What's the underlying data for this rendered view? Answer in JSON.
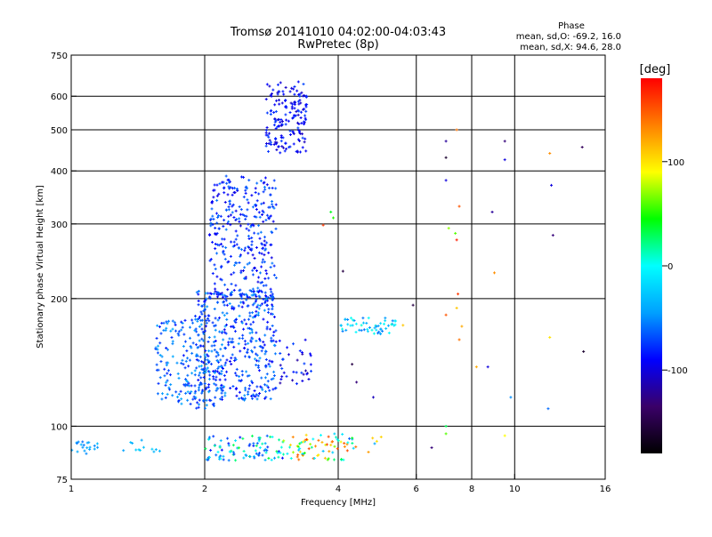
{
  "chart_data": {
    "type": "scatter",
    "title": "Tromsø 20141010 04:02:00-04:03:43",
    "subtitle": "RwPretec (8p)",
    "xlabel": "Frequency [MHz]",
    "ylabel": "Stationary phase Virtual Height [km]",
    "x_scale": "log",
    "y_scale": "log",
    "xlim": [
      1,
      16
    ],
    "ylim": [
      75,
      750
    ],
    "x_ticks": [
      {
        "value": 1,
        "label": "1"
      },
      {
        "value": 2,
        "label": "2"
      },
      {
        "value": 4,
        "label": "4"
      },
      {
        "value": 6,
        "label": "6"
      },
      {
        "value": 8,
        "label": "8"
      },
      {
        "value": 10,
        "label": "10"
      },
      {
        "value": 16,
        "label": "16"
      }
    ],
    "y_ticks": [
      {
        "value": 75,
        "label": "75"
      },
      {
        "value": 100,
        "label": "100"
      },
      {
        "value": 200,
        "label": "200"
      },
      {
        "value": 300,
        "label": "300"
      },
      {
        "value": 400,
        "label": "400"
      },
      {
        "value": 500,
        "label": "500"
      },
      {
        "value": 600,
        "label": "600"
      },
      {
        "value": 750,
        "label": "750"
      }
    ],
    "x_gridlines": [
      2,
      4,
      6,
      8,
      10
    ],
    "y_gridlines": [
      100,
      200,
      300,
      400,
      500,
      600
    ],
    "grid": true,
    "phase_legend": {
      "title": "Phase",
      "line1": "mean, sd,O: -69.2, 16.0",
      "line2": "mean, sd,X:  94.6, 28.0"
    },
    "colorbar": {
      "label": "[deg]",
      "range": [
        -180,
        180
      ],
      "ticks": [
        {
          "value": 100,
          "label": "100"
        },
        {
          "value": 0,
          "label": "0"
        },
        {
          "value": -100,
          "label": "-100"
        }
      ],
      "colors": [
        "#000000",
        "#3a0068",
        "#0000ff",
        "#00a0ff",
        "#00ffff",
        "#00ff00",
        "#ffff00",
        "#ff8000",
        "#ff0000"
      ]
    },
    "clusters": [
      {
        "f": [
          2.75,
          3.4
        ],
        "h": [
          440,
          650
        ],
        "n": 170,
        "phase": [
          -110,
          -70
        ]
      },
      {
        "f": [
          2.05,
          2.9
        ],
        "h": [
          200,
          390
        ],
        "n": 320,
        "phase": [
          -100,
          -55
        ]
      },
      {
        "f": [
          1.9,
          2.9
        ],
        "h": [
          115,
          210
        ],
        "n": 420,
        "phase": [
          -95,
          -45
        ]
      },
      {
        "f": [
          1.55,
          2.2
        ],
        "h": [
          110,
          180
        ],
        "n": 200,
        "phase": [
          -85,
          -40
        ]
      },
      {
        "f": [
          2.9,
          3.5
        ],
        "h": [
          125,
          160
        ],
        "n": 35,
        "phase": [
          -120,
          -70
        ]
      },
      {
        "f": [
          4.0,
          5.4
        ],
        "h": [
          165,
          180
        ],
        "n": 55,
        "phase": [
          -60,
          10
        ]
      },
      {
        "f": [
          1.0,
          1.15
        ],
        "h": [
          86,
          92
        ],
        "n": 20,
        "phase": [
          -60,
          -30
        ]
      },
      {
        "f": [
          1.3,
          1.6
        ],
        "h": [
          87,
          94
        ],
        "n": 12,
        "phase": [
          -55,
          -20
        ]
      },
      {
        "f": [
          2.0,
          3.0
        ],
        "h": [
          83,
          95
        ],
        "n": 90,
        "phase": [
          -90,
          40
        ]
      },
      {
        "f": [
          3.0,
          4.2
        ],
        "h": [
          83,
          97
        ],
        "n": 70,
        "phase": [
          -30,
          160
        ]
      },
      {
        "f": [
          4.2,
          5.0
        ],
        "h": [
          85,
          95
        ],
        "n": 12,
        "phase": [
          -80,
          150
        ]
      }
    ],
    "sparse_points": [
      {
        "f": 3.85,
        "h": 320,
        "phase": 40
      },
      {
        "f": 3.9,
        "h": 310,
        "phase": 50
      },
      {
        "f": 3.7,
        "h": 298,
        "phase": 160
      },
      {
        "f": 4.1,
        "h": 232,
        "phase": -150
      },
      {
        "f": 4.3,
        "h": 140,
        "phase": -150
      },
      {
        "f": 4.4,
        "h": 127,
        "phase": -130
      },
      {
        "f": 4.8,
        "h": 117,
        "phase": -110
      },
      {
        "f": 5.9,
        "h": 193,
        "phase": -150
      },
      {
        "f": 5.6,
        "h": 173,
        "phase": 110
      },
      {
        "f": 6.5,
        "h": 89,
        "phase": -130
      },
      {
        "f": 7.0,
        "h": 470,
        "phase": -120
      },
      {
        "f": 7.0,
        "h": 430,
        "phase": -160
      },
      {
        "f": 7.0,
        "h": 380,
        "phase": -100
      },
      {
        "f": 7.4,
        "h": 500,
        "phase": 140
      },
      {
        "f": 7.5,
        "h": 330,
        "phase": 150
      },
      {
        "f": 7.1,
        "h": 293,
        "phase": 70
      },
      {
        "f": 7.35,
        "h": 285,
        "phase": 60
      },
      {
        "f": 7.4,
        "h": 275,
        "phase": 170
      },
      {
        "f": 7.45,
        "h": 205,
        "phase": 160
      },
      {
        "f": 7.4,
        "h": 190,
        "phase": 110
      },
      {
        "f": 7.0,
        "h": 183,
        "phase": 150
      },
      {
        "f": 7.5,
        "h": 160,
        "phase": 140
      },
      {
        "f": 7.6,
        "h": 172,
        "phase": 120
      },
      {
        "f": 7.0,
        "h": 100,
        "phase": 30
      },
      {
        "f": 7.0,
        "h": 96,
        "phase": 60
      },
      {
        "f": 8.2,
        "h": 138,
        "phase": 120
      },
      {
        "f": 8.7,
        "h": 138,
        "phase": -100
      },
      {
        "f": 8.9,
        "h": 320,
        "phase": -120
      },
      {
        "f": 9.0,
        "h": 230,
        "phase": 130
      },
      {
        "f": 9.5,
        "h": 470,
        "phase": -130
      },
      {
        "f": 9.5,
        "h": 425,
        "phase": -100
      },
      {
        "f": 9.8,
        "h": 117,
        "phase": -50
      },
      {
        "f": 9.5,
        "h": 95,
        "phase": 90
      },
      {
        "f": 12.0,
        "h": 440,
        "phase": 130
      },
      {
        "f": 12.1,
        "h": 370,
        "phase": -100
      },
      {
        "f": 12.2,
        "h": 282,
        "phase": -130
      },
      {
        "f": 12.0,
        "h": 162,
        "phase": 100
      },
      {
        "f": 11.9,
        "h": 110,
        "phase": -60
      },
      {
        "f": 14.2,
        "h": 455,
        "phase": -140
      },
      {
        "f": 14.3,
        "h": 150,
        "phase": -160
      }
    ]
  }
}
